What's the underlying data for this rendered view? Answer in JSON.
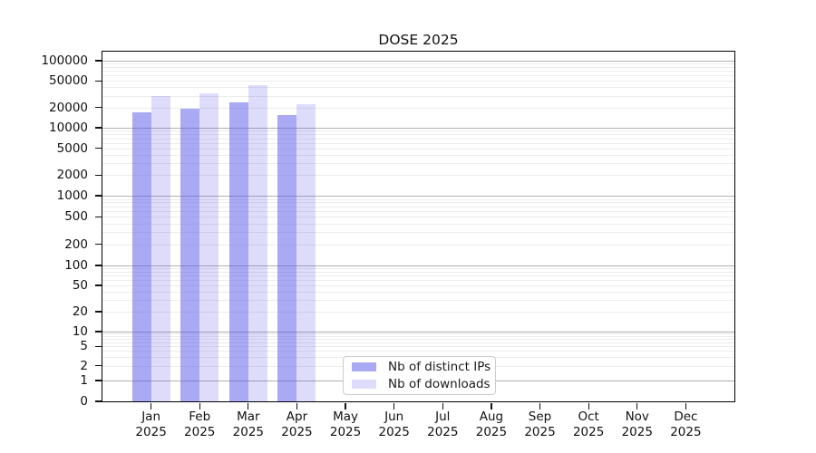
{
  "title": "DOSE 2025",
  "chart_data": {
    "type": "bar",
    "title": "DOSE 2025",
    "categories": [
      "Jan",
      "Feb",
      "Mar",
      "Apr",
      "May",
      "Jun",
      "Jul",
      "Aug",
      "Sep",
      "Oct",
      "Nov",
      "Dec"
    ],
    "category_year": "2025",
    "series": [
      {
        "name": "Nb of distinct IPs",
        "color": "#5353ea",
        "alpha": 0.5,
        "values": [
          17000,
          19300,
          23700,
          15500,
          null,
          null,
          null,
          null,
          null,
          null,
          null,
          null
        ]
      },
      {
        "name": "Nb of downloads",
        "color": "#5353ea",
        "alpha": 0.2,
        "values": [
          29500,
          32500,
          42500,
          22300,
          null,
          null,
          null,
          null,
          null,
          null,
          null,
          null
        ]
      }
    ],
    "xlabel": "",
    "ylabel": "",
    "yscale": "symlog",
    "yticks": [
      100000,
      50000,
      20000,
      10000,
      5000,
      2000,
      1000,
      500,
      200,
      100,
      50,
      20,
      10,
      5,
      2,
      1,
      0
    ],
    "ylim": [
      0,
      131000
    ],
    "grid": "horizontal",
    "legend_position": "lower center"
  },
  "colors": {
    "bar_base": "#5353ea",
    "grid_major": "#b0b0b0",
    "grid_minor": "#ececec",
    "axis": "#000000",
    "background": "#ffffff"
  }
}
